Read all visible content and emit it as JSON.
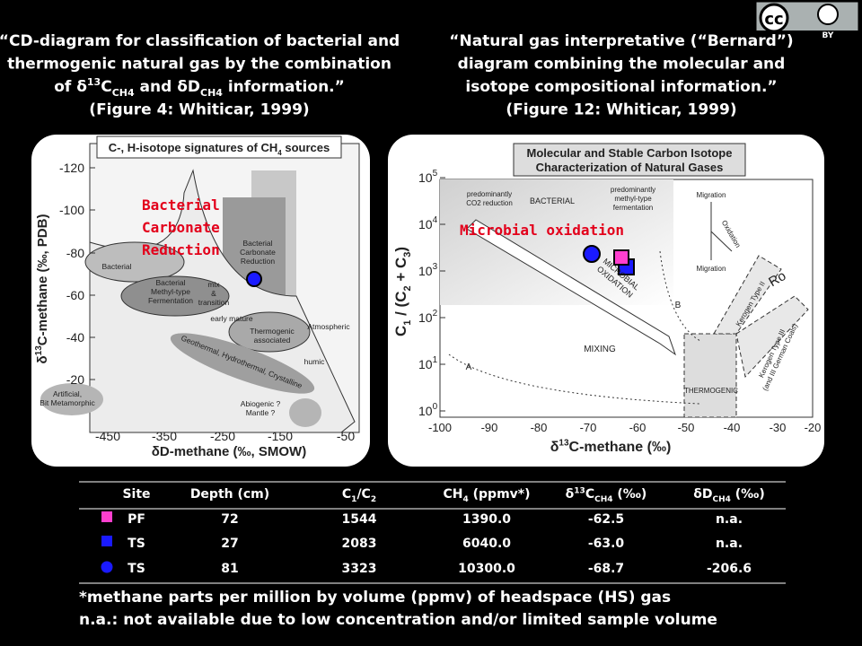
{
  "license_badge": {
    "cc": "cc",
    "by": "BY"
  },
  "left_caption": {
    "lines": [
      [
        "“CD-diagram for classification of bacterial and"
      ],
      [
        "thermogenic natural gas by the combination"
      ],
      [
        "of δ",
        {
          "text": "13",
          "pos": "sup"
        },
        "C",
        {
          "text": "CH4",
          "pos": "sub"
        },
        " and δD",
        {
          "text": "CH4",
          "pos": "sub"
        },
        "  information.”"
      ],
      [
        "(Figure 4: Whiticar, 1999)"
      ]
    ]
  },
  "right_caption": {
    "lines": [
      [
        "“Natural gas interpretative (“Bernard”)"
      ],
      [
        "diagram combining the molecular and"
      ],
      [
        "isotope compositional information.”"
      ],
      [
        "(Figure 12: Whiticar, 1999)"
      ]
    ]
  },
  "left_figure": {
    "title": [
      "C-, H-isotope signatures of CH",
      {
        "text": "4",
        "pos": "sub"
      },
      " sources"
    ],
    "y_label": [
      "δ",
      {
        "text": "13",
        "pos": "sup"
      },
      "C-methane (‰, PDB)"
    ],
    "x_label": [
      "δD-methane (‰, SMOW)"
    ],
    "yticks": [
      "-120",
      "-100",
      "-80",
      "-60",
      "-40",
      "-20"
    ],
    "xticks": [
      "-450",
      "-350",
      "-250",
      "-150",
      "-50"
    ],
    "regions": [
      [
        "Bacterial"
      ],
      [
        "Bacterial",
        "Methyl-type",
        "Fermentation"
      ],
      [
        "mix",
        "&",
        "transition"
      ],
      [
        "Bacterial",
        "Carbonate",
        "Reduction"
      ],
      [
        "early mature"
      ],
      [
        "Thermogenic",
        "associated"
      ],
      [
        "humic"
      ],
      [
        "Atmospheric"
      ],
      [
        "Geothermal, Hydrothermal, Crystalline"
      ],
      [
        "Artificial,",
        "Bit Metamorphic"
      ],
      [
        "Abiogenic ?",
        "Mantle ?"
      ]
    ],
    "annotation": [
      "Bacterial",
      "Carbonate",
      "Reduction"
    ]
  },
  "right_figure": {
    "title": [
      "Molecular and Stable Carbon Isotope",
      "Characterization of Natural Gases"
    ],
    "y_label": [
      "C",
      {
        "text": "1",
        "pos": "sub"
      },
      " / (C",
      {
        "text": "2",
        "pos": "sub"
      },
      " + C",
      {
        "text": "3",
        "pos": "sub"
      },
      ")"
    ],
    "x_label": [
      "δ",
      {
        "text": "13",
        "pos": "sup"
      },
      "C-methane (‰)"
    ],
    "yticks": [
      {
        "base": "10",
        "exp": "5"
      },
      {
        "base": "10",
        "exp": "4"
      },
      {
        "base": "10",
        "exp": "3"
      },
      {
        "base": "10",
        "exp": "2"
      },
      {
        "base": "10",
        "exp": "1"
      },
      {
        "base": "10",
        "exp": "0"
      }
    ],
    "xticks": [
      "-100",
      "-90",
      "-80",
      "-70",
      "-60",
      "-50",
      "-40",
      "-30",
      "-20"
    ],
    "regions": [
      [
        "predominantly",
        "CO2 reduction"
      ],
      [
        "BACTERIAL"
      ],
      [
        "predominantly",
        "methyl-type",
        "fermentation"
      ],
      [
        "Migration"
      ],
      [
        "Oxidation"
      ],
      [
        "Migration"
      ],
      [
        "MICROBIAL",
        "OXIDATION"
      ],
      [
        "B"
      ],
      [
        "MIXING"
      ],
      [
        "THERMOGENIC"
      ],
      [
        "A"
      ],
      [
        "Kerogen Type II"
      ],
      [
        "Kerogen Type III",
        "(and III German Coals)"
      ],
      [
        "Ro"
      ]
    ],
    "annotation": "Microbial oxidation"
  },
  "table": {
    "headers": [
      [
        "Site"
      ],
      [
        "Depth (cm)"
      ],
      [
        "C",
        {
          "text": "1",
          "pos": "sub"
        },
        "/C",
        {
          "text": "2",
          "pos": "sub"
        }
      ],
      [
        "CH",
        {
          "text": "4",
          "pos": "sub"
        },
        " (ppmv*)"
      ],
      [
        "δ",
        {
          "text": "13",
          "pos": "sup"
        },
        "C",
        {
          "text": "CH4",
          "pos": "sub"
        },
        " (‰)"
      ],
      [
        "δD",
        {
          "text": "CH4",
          "pos": "sub"
        },
        " (‰)"
      ]
    ],
    "rows": [
      {
        "marker": "pink-square",
        "cells": [
          "PF",
          "72",
          "1544",
          "1390.0",
          "-62.5",
          "n.a."
        ]
      },
      {
        "marker": "blue-square",
        "cells": [
          "TS",
          "27",
          "2083",
          "6040.0",
          "-63.0",
          "n.a."
        ]
      },
      {
        "marker": "blue-circle",
        "cells": [
          "TS",
          "81",
          "3323",
          "10300.0",
          "-68.7",
          "-206.6"
        ]
      }
    ]
  },
  "footnotes": [
    "*methane parts per million by volume (ppmv) of headspace (HS) gas",
    "n.a.: not available due to low concentration and/or limited sample volume"
  ]
}
